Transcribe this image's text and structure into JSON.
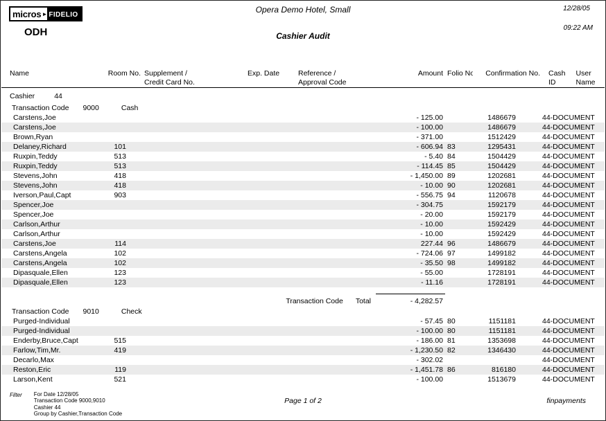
{
  "header": {
    "logo_micros": "micros",
    "logo_arrow": "►",
    "logo_fidelio": "FIDELIO",
    "property_code": "ODH",
    "hotel_name": "Opera Demo Hotel, Small",
    "report_title": "Cashier Audit",
    "date": "12/28/05",
    "time": "09:22 AM"
  },
  "columns": {
    "name": "Name",
    "room": "Room No.",
    "supplement_line1": "Supplement /",
    "supplement_line2": "Credit Card No.",
    "exp_date": "Exp. Date",
    "reference_line1": "Reference /",
    "reference_line2": "Approval Code",
    "amount": "Amount",
    "folio": "Folio No.",
    "confirmation": "Confirmation No.",
    "cash_id_line1": "Cash",
    "cash_id_line2": "ID",
    "user_line1": "User",
    "user_line2": "Name"
  },
  "cashier": {
    "label": "Cashier",
    "number": "44"
  },
  "sections": [
    {
      "label": "Transaction Code",
      "code": "9000",
      "name": "Cash",
      "rows": [
        {
          "name": "Carstens,Joe",
          "room": "",
          "amount": "- 125.00",
          "folio": "",
          "confirmation": "1486679",
          "user": "44-DOCUMENT"
        },
        {
          "name": "Carstens,Joe",
          "room": "",
          "amount": "- 100.00",
          "folio": "",
          "confirmation": "1486679",
          "user": "44-DOCUMENT"
        },
        {
          "name": "Brown,Ryan",
          "room": "",
          "amount": "- 371.00",
          "folio": "",
          "confirmation": "1512429",
          "user": "44-DOCUMENT"
        },
        {
          "name": "Delaney,Richard",
          "room": "101",
          "amount": "- 606.94",
          "folio": "83",
          "confirmation": "1295431",
          "user": "44-DOCUMENT"
        },
        {
          "name": "Ruxpin,Teddy",
          "room": "513",
          "amount": "- 5.40",
          "folio": "84",
          "confirmation": "1504429",
          "user": "44-DOCUMENT"
        },
        {
          "name": "Ruxpin,Teddy",
          "room": "513",
          "amount": "- 114.45",
          "folio": "85",
          "confirmation": "1504429",
          "user": "44-DOCUMENT"
        },
        {
          "name": "Stevens,John",
          "room": "418",
          "amount": "- 1,450.00",
          "folio": "89",
          "confirmation": "1202681",
          "user": "44-DOCUMENT"
        },
        {
          "name": "Stevens,John",
          "room": "418",
          "amount": "- 10.00",
          "folio": "90",
          "confirmation": "1202681",
          "user": "44-DOCUMENT"
        },
        {
          "name": "Iverson,Paul,Capt",
          "room": "903",
          "amount": "- 556.75",
          "folio": "94",
          "confirmation": "1120678",
          "user": "44-DOCUMENT"
        },
        {
          "name": "Spencer,Joe",
          "room": "",
          "amount": "- 304.75",
          "folio": "",
          "confirmation": "1592179",
          "user": "44-DOCUMENT"
        },
        {
          "name": "Spencer,Joe",
          "room": "",
          "amount": "- 20.00",
          "folio": "",
          "confirmation": "1592179",
          "user": "44-DOCUMENT"
        },
        {
          "name": "Carlson,Arthur",
          "room": "",
          "amount": "- 10.00",
          "folio": "",
          "confirmation": "1592429",
          "user": "44-DOCUMENT"
        },
        {
          "name": "Carlson,Arthur",
          "room": "",
          "amount": "- 10.00",
          "folio": "",
          "confirmation": "1592429",
          "user": "44-DOCUMENT"
        },
        {
          "name": "Carstens,Joe",
          "room": "114",
          "amount": "227.44",
          "folio": "96",
          "confirmation": "1486679",
          "user": "44-DOCUMENT"
        },
        {
          "name": "Carstens,Angela",
          "room": "102",
          "amount": "- 724.06",
          "folio": "97",
          "confirmation": "1499182",
          "user": "44-DOCUMENT"
        },
        {
          "name": "Carstens,Angela",
          "room": "102",
          "amount": "- 35.50",
          "folio": "98",
          "confirmation": "1499182",
          "user": "44-DOCUMENT"
        },
        {
          "name": "Dipasquale,Ellen",
          "room": "123",
          "amount": "- 55.00",
          "folio": "",
          "confirmation": "1728191",
          "user": "44-DOCUMENT"
        },
        {
          "name": "Dipasquale,Ellen",
          "room": "123",
          "amount": "- 11.16",
          "folio": "",
          "confirmation": "1728191",
          "user": "44-DOCUMENT"
        }
      ],
      "total": {
        "label": "Transaction Code",
        "sublabel": "Total",
        "amount": "- 4,282.57"
      }
    },
    {
      "label": "Transaction Code",
      "code": "9010",
      "name": "Check",
      "rows": [
        {
          "name": "Purged-Individual",
          "room": "",
          "amount": "- 57.45",
          "folio": "80",
          "confirmation": "1151181",
          "user": "44-DOCUMENT"
        },
        {
          "name": "Purged-Individual",
          "room": "",
          "amount": "- 100.00",
          "folio": "80",
          "confirmation": "1151181",
          "user": "44-DOCUMENT"
        },
        {
          "name": "Enderby,Bruce,Capt",
          "room": "515",
          "amount": "- 186.00",
          "folio": "81",
          "confirmation": "1353698",
          "user": "44-DOCUMENT"
        },
        {
          "name": "Farlow,Tim,Mr.",
          "room": "419",
          "amount": "- 1,230.50",
          "folio": "82",
          "confirmation": "1346430",
          "user": "44-DOCUMENT"
        },
        {
          "name": "Decarlo,Max",
          "room": "",
          "amount": "- 302.02",
          "folio": "",
          "confirmation": "",
          "user": "44-DOCUMENT"
        },
        {
          "name": "Reston,Eric",
          "room": "119",
          "amount": "- 1,451.78",
          "folio": "86",
          "confirmation": "816180",
          "user": "44-DOCUMENT"
        },
        {
          "name": "Larson,Kent",
          "room": "521",
          "amount": "- 100.00",
          "folio": "",
          "confirmation": "1513679",
          "user": "44-DOCUMENT"
        }
      ]
    }
  ],
  "footer": {
    "filter_label": "Filter",
    "filter_lines": [
      "For Date 12/28/05",
      "Transaction Code 9000,9010",
      "Cashier 44",
      "Group by Cashier,Transaction Code"
    ],
    "page": "Page 1  of 2",
    "report_name": "finpayments"
  }
}
